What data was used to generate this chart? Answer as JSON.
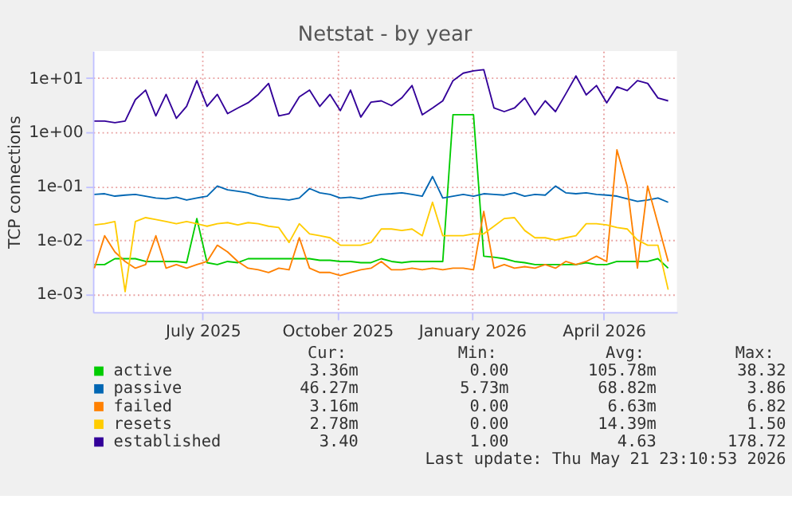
{
  "chart_data": {
    "type": "line",
    "title": "Netstat - by year",
    "ylabel": "TCP connections",
    "x": [
      "2025-04-18",
      "2025-04-25",
      "2025-05-02",
      "2025-05-09",
      "2025-05-16",
      "2025-05-23",
      "2025-05-30",
      "2025-06-06",
      "2025-06-13",
      "2025-06-20",
      "2025-06-27",
      "2025-07-04",
      "2025-07-11",
      "2025-07-18",
      "2025-07-25",
      "2025-08-01",
      "2025-08-08",
      "2025-08-15",
      "2025-08-22",
      "2025-08-29",
      "2025-09-05",
      "2025-09-12",
      "2025-09-19",
      "2025-09-26",
      "2025-10-03",
      "2025-10-10",
      "2025-10-17",
      "2025-10-24",
      "2025-10-31",
      "2025-11-07",
      "2025-11-14",
      "2025-11-21",
      "2025-11-28",
      "2025-12-05",
      "2025-12-12",
      "2025-12-19",
      "2025-12-26",
      "2026-01-02",
      "2026-01-09",
      "2026-01-16",
      "2026-01-23",
      "2026-01-30",
      "2026-02-06",
      "2026-02-13",
      "2026-02-20",
      "2026-02-27",
      "2026-03-06",
      "2026-03-13",
      "2026-03-20",
      "2026-03-27",
      "2026-04-03",
      "2026-04-10",
      "2026-04-17",
      "2026-04-24",
      "2026-05-01",
      "2026-05-08",
      "2026-05-15"
    ],
    "series": [
      {
        "name": "active",
        "color": "#00cc00",
        "values": [
          0.0035,
          0.0035,
          0.0045,
          0.0045,
          0.0045,
          0.004,
          0.004,
          0.004,
          0.004,
          0.0038,
          0.025,
          0.0038,
          0.0035,
          0.004,
          0.0038,
          0.0045,
          0.0045,
          0.0045,
          0.0045,
          0.0045,
          0.0045,
          0.0045,
          0.0042,
          0.0042,
          0.004,
          0.004,
          0.0038,
          0.0038,
          0.0045,
          0.004,
          0.0038,
          0.004,
          0.004,
          0.004,
          0.004,
          2.1,
          2.1,
          2.1,
          0.005,
          0.0048,
          0.0045,
          0.004,
          0.0038,
          0.0035,
          0.0035,
          0.0035,
          0.0035,
          0.0035,
          0.0038,
          0.0035,
          0.0035,
          0.004,
          0.004,
          0.004,
          0.004,
          0.0045,
          0.003
        ]
      },
      {
        "name": "passive",
        "color": "#0066b3",
        "values": [
          0.07,
          0.072,
          0.065,
          0.068,
          0.07,
          0.065,
          0.06,
          0.058,
          0.062,
          0.055,
          0.06,
          0.065,
          0.1,
          0.085,
          0.08,
          0.075,
          0.065,
          0.06,
          0.058,
          0.055,
          0.06,
          0.09,
          0.075,
          0.07,
          0.06,
          0.062,
          0.058,
          0.065,
          0.07,
          0.072,
          0.075,
          0.07,
          0.065,
          0.15,
          0.06,
          0.065,
          0.07,
          0.065,
          0.072,
          0.07,
          0.068,
          0.075,
          0.065,
          0.07,
          0.068,
          0.1,
          0.075,
          0.072,
          0.075,
          0.07,
          0.068,
          0.065,
          0.058,
          0.052,
          0.055,
          0.06,
          0.05
        ]
      },
      {
        "name": "failed",
        "color": "#ff8000",
        "values": [
          0.003,
          0.012,
          0.006,
          0.004,
          0.003,
          0.0035,
          0.012,
          0.003,
          0.0035,
          0.003,
          0.0035,
          0.004,
          0.008,
          0.006,
          0.004,
          0.003,
          0.0028,
          0.0025,
          0.003,
          0.0028,
          0.011,
          0.003,
          0.0025,
          0.0025,
          0.0022,
          0.0025,
          0.0028,
          0.003,
          0.004,
          0.0028,
          0.0028,
          0.003,
          0.0028,
          0.003,
          0.0028,
          0.003,
          0.003,
          0.0028,
          0.034,
          0.003,
          0.0035,
          0.003,
          0.0032,
          0.003,
          0.0035,
          0.003,
          0.004,
          0.0035,
          0.004,
          0.005,
          0.004,
          0.47,
          0.1,
          0.003,
          0.1,
          0.02,
          0.004
        ]
      },
      {
        "name": "resets",
        "color": "#ffcc00",
        "values": [
          0.019,
          0.02,
          0.022,
          0.0011,
          0.022,
          0.026,
          0.024,
          0.022,
          0.02,
          0.022,
          0.02,
          0.018,
          0.02,
          0.021,
          0.019,
          0.021,
          0.02,
          0.018,
          0.017,
          0.009,
          0.02,
          0.013,
          0.012,
          0.011,
          0.008,
          0.008,
          0.008,
          0.009,
          0.016,
          0.016,
          0.015,
          0.016,
          0.012,
          0.05,
          0.012,
          0.012,
          0.012,
          0.013,
          0.013,
          0.018,
          0.025,
          0.026,
          0.015,
          0.011,
          0.011,
          0.01,
          0.011,
          0.012,
          0.02,
          0.02,
          0.019,
          0.017,
          0.016,
          0.01,
          0.008,
          0.008,
          0.0012
        ]
      },
      {
        "name": "established",
        "color": "#330099",
        "values": [
          1.6,
          1.6,
          1.5,
          1.6,
          4,
          6,
          2,
          5,
          1.8,
          3,
          9,
          3,
          5,
          2.2,
          2.8,
          3.5,
          5,
          8,
          2,
          2.2,
          4.5,
          6,
          3,
          5,
          2.5,
          6,
          1.9,
          3.6,
          3.8,
          3.1,
          4.3,
          7.3,
          2.1,
          2.8,
          3.8,
          9,
          12.4,
          13.7,
          14.4,
          2.8,
          2.4,
          2.8,
          4.3,
          2.1,
          3.8,
          2.4,
          5.1,
          11,
          4.9,
          7.3,
          3.5,
          6.9,
          5.9,
          9,
          8,
          4.3,
          3.8
        ]
      }
    ],
    "xlim": [
      "2025-04-17",
      "2026-05-21"
    ],
    "xticks": [
      {
        "value": "2025-07-01",
        "label": "July 2025"
      },
      {
        "value": "2025-10-01",
        "label": "October 2025"
      },
      {
        "value": "2026-01-01",
        "label": "January 2026"
      },
      {
        "value": "2026-04-01",
        "label": "April 2026"
      }
    ],
    "ylim": [
      0.00046,
      32
    ],
    "yticks": [
      {
        "value": 0.001,
        "label": "1e-03"
      },
      {
        "value": 0.01,
        "label": "1e-02"
      },
      {
        "value": 0.1,
        "label": "1e-01"
      },
      {
        "value": 1,
        "label": "1e+00"
      },
      {
        "value": 10,
        "label": "1e+01"
      }
    ],
    "log": true,
    "grid": true,
    "legend": "bottom",
    "annotations": [
      "Cur:",
      "Min:",
      "Avg:",
      "Max:",
      "3.36m",
      "0.00",
      "105.78m",
      "38.32",
      "46.27m",
      "5.73m",
      "68.82m",
      "3.86",
      "3.16m",
      "0.00",
      "6.63m",
      "6.82",
      "2.78m",
      "0.00",
      "14.39m",
      "1.50",
      "3.40",
      "1.00",
      "4.63",
      "178.72",
      "Last update: Thu May 21 23:10:53 2026"
    ]
  }
}
